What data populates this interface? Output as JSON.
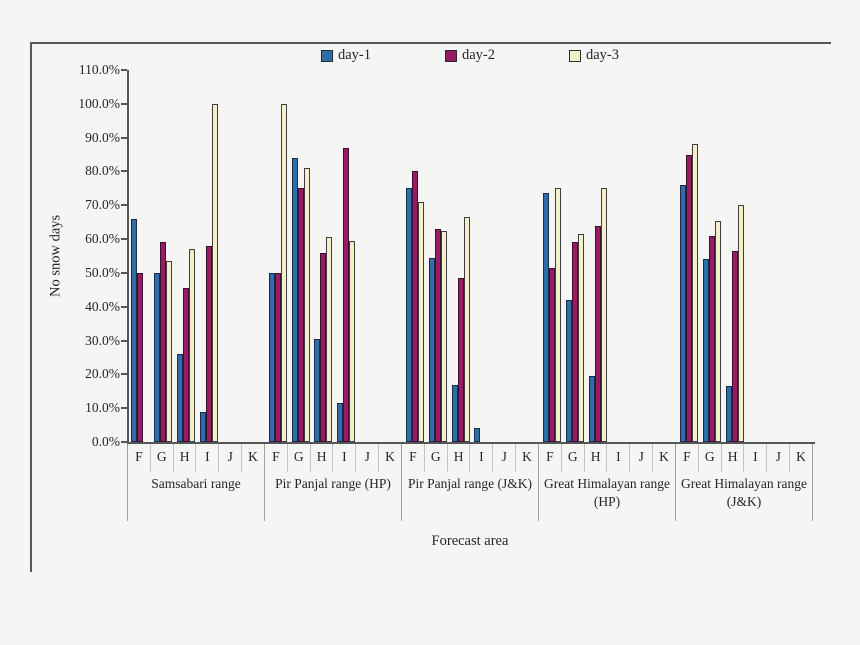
{
  "figure": {
    "background": "#F5F5F4",
    "frame_color": "#55555C"
  },
  "chart_data": {
    "type": "bar",
    "title": "",
    "xlabel": "Forecast area",
    "ylabel": "No snow days",
    "ylim": [
      0,
      110
    ],
    "ytick_step": 10,
    "ytick_suffix": "%",
    "grid": false,
    "legend_position": "top-center",
    "value_unit": "percent",
    "sub_categories": [
      "F",
      "G",
      "H",
      "I",
      "J",
      "K"
    ],
    "series": [
      {
        "name": "day-1",
        "fill": "#2E6DA8",
        "border": "#1E2A4A"
      },
      {
        "name": "day-2",
        "fill": "#981B63",
        "border": "#3A1030"
      },
      {
        "name": "day-3",
        "fill": "#F3EFC7",
        "border": "#3C3C42"
      }
    ],
    "groups": [
      {
        "label": "Samsabari range",
        "values": {
          "day-1": [
            66,
            50,
            26,
            9,
            0,
            0
          ],
          "day-2": [
            50,
            59,
            45.5,
            58,
            0,
            0
          ],
          "day-3": [
            0,
            53.5,
            57,
            100,
            0,
            0
          ]
        }
      },
      {
        "label": "Pir Panjal range (HP)",
        "values": {
          "day-1": [
            50,
            84,
            30.5,
            11.5,
            0,
            0
          ],
          "day-2": [
            50,
            75,
            56,
            87,
            0,
            0
          ],
          "day-3": [
            100,
            81,
            60.5,
            59.5,
            0,
            0
          ]
        }
      },
      {
        "label": "Pir Panjal range (J&K)",
        "values": {
          "day-1": [
            75,
            54.5,
            17,
            4,
            0,
            0
          ],
          "day-2": [
            80,
            63,
            48.5,
            0,
            0,
            0
          ],
          "day-3": [
            71,
            62.5,
            66.5,
            0,
            0,
            0
          ]
        }
      },
      {
        "label": "Great Himalayan range (HP)",
        "values": {
          "day-1": [
            73.5,
            42,
            19.5,
            0,
            0,
            0
          ],
          "day-2": [
            51.5,
            59,
            64,
            0,
            0,
            0
          ],
          "day-3": [
            75,
            61.5,
            75,
            0,
            0,
            0
          ]
        }
      },
      {
        "label": "Great Himalayan range (J&K)",
        "values": {
          "day-1": [
            76,
            54,
            16.5,
            0,
            0,
            0
          ],
          "day-2": [
            85,
            61,
            56.5,
            0,
            0,
            0
          ],
          "day-3": [
            88,
            65.5,
            70,
            0,
            0,
            0
          ]
        }
      }
    ]
  }
}
